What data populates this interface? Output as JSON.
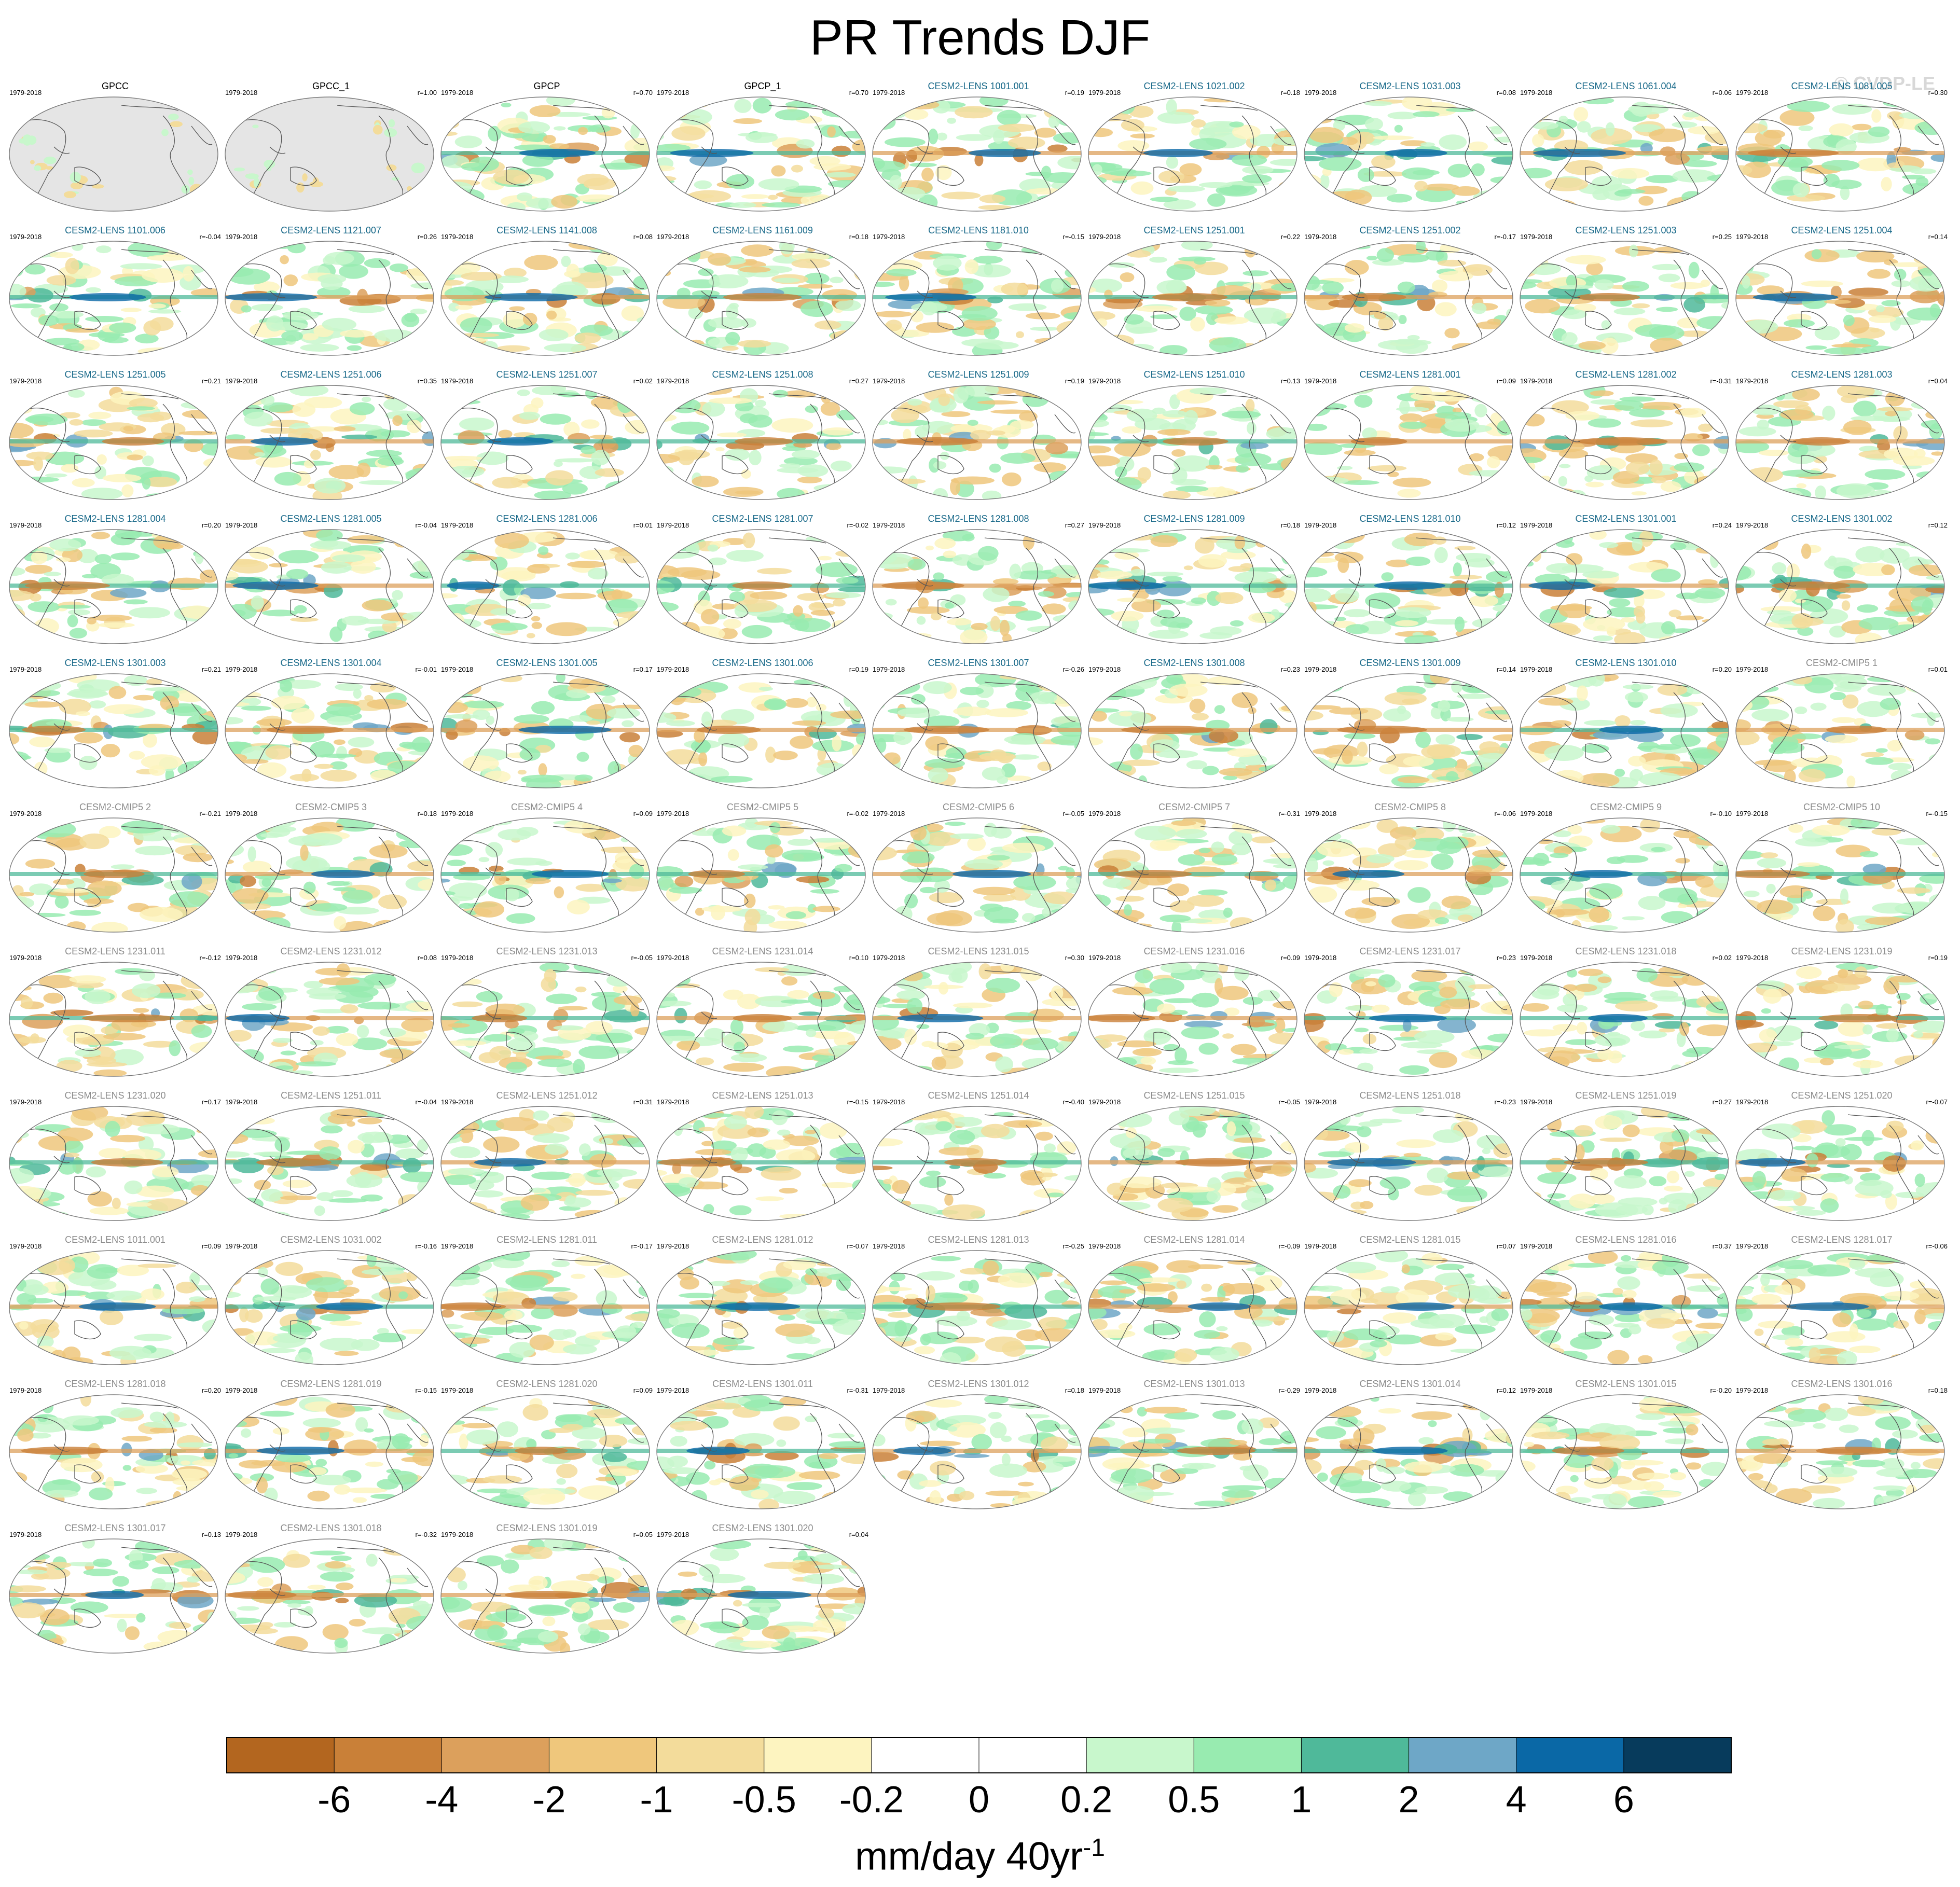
{
  "title": "PR Trends DJF",
  "watermark": "© CVDP-LE",
  "chart_data": {
    "type": "heatmap",
    "title": "PR Trends DJF",
    "projection": "Robinson (global, Pacific-centered)",
    "colorbar": {
      "label_text": "mm/day 40yr",
      "label_superscript": "-1",
      "ticks": [
        "-6",
        "-4",
        "-2",
        "-1",
        "-0.5",
        "-0.2",
        "0",
        "0.2",
        "0.5",
        "1",
        "2",
        "4",
        "6"
      ],
      "colors": [
        "#b3661f",
        "#c98038",
        "#dca05c",
        "#efc77c",
        "#f3dc9b",
        "#fdf4c0",
        "#ffffff",
        "#ffffff",
        "#c8f7cc",
        "#98ebb0",
        "#4fb99a",
        "#6ea7c7",
        "#0a68a6",
        "#073b5c"
      ]
    },
    "panels": [
      {
        "name": "GPCC",
        "period": "1979-2018",
        "r": "",
        "group": "obs",
        "masked_ocean": true
      },
      {
        "name": "GPCC_1",
        "period": "1979-2018",
        "r": "r=1.00",
        "group": "obs",
        "masked_ocean": true
      },
      {
        "name": "GPCP",
        "period": "1979-2018",
        "r": "r=0.70",
        "group": "obs"
      },
      {
        "name": "GPCP_1",
        "period": "1979-2018",
        "r": "r=0.70",
        "group": "obs"
      },
      {
        "name": "CESM2-LENS 1001.001",
        "period": "1979-2018",
        "r": "r=0.19",
        "group": "lens"
      },
      {
        "name": "CESM2-LENS 1021.002",
        "period": "1979-2018",
        "r": "r=0.18",
        "group": "lens"
      },
      {
        "name": "CESM2-LENS 1031.003",
        "period": "1979-2018",
        "r": "r=0.08",
        "group": "lens"
      },
      {
        "name": "CESM2-LENS 1061.004",
        "period": "1979-2018",
        "r": "r=0.06",
        "group": "lens"
      },
      {
        "name": "CESM2-LENS 1081.005",
        "period": "1979-2018",
        "r": "r=0.30",
        "group": "lens"
      },
      {
        "name": "CESM2-LENS 1101.006",
        "period": "1979-2018",
        "r": "r=-0.04",
        "group": "lens"
      },
      {
        "name": "CESM2-LENS 1121.007",
        "period": "1979-2018",
        "r": "r=0.26",
        "group": "lens"
      },
      {
        "name": "CESM2-LENS 1141.008",
        "period": "1979-2018",
        "r": "r=0.08",
        "group": "lens"
      },
      {
        "name": "CESM2-LENS 1161.009",
        "period": "1979-2018",
        "r": "r=0.18",
        "group": "lens"
      },
      {
        "name": "CESM2-LENS 1181.010",
        "period": "1979-2018",
        "r": "r=-0.15",
        "group": "lens"
      },
      {
        "name": "CESM2-LENS 1251.001",
        "period": "1979-2018",
        "r": "r=0.22",
        "group": "lens"
      },
      {
        "name": "CESM2-LENS 1251.002",
        "period": "1979-2018",
        "r": "r=-0.17",
        "group": "lens"
      },
      {
        "name": "CESM2-LENS 1251.003",
        "period": "1979-2018",
        "r": "r=0.25",
        "group": "lens"
      },
      {
        "name": "CESM2-LENS 1251.004",
        "period": "1979-2018",
        "r": "r=0.14",
        "group": "lens"
      },
      {
        "name": "CESM2-LENS 1251.005",
        "period": "1979-2018",
        "r": "r=0.21",
        "group": "lens"
      },
      {
        "name": "CESM2-LENS 1251.006",
        "period": "1979-2018",
        "r": "r=0.35",
        "group": "lens"
      },
      {
        "name": "CESM2-LENS 1251.007",
        "period": "1979-2018",
        "r": "r=0.02",
        "group": "lens"
      },
      {
        "name": "CESM2-LENS 1251.008",
        "period": "1979-2018",
        "r": "r=0.27",
        "group": "lens"
      },
      {
        "name": "CESM2-LENS 1251.009",
        "period": "1979-2018",
        "r": "r=0.19",
        "group": "lens"
      },
      {
        "name": "CESM2-LENS 1251.010",
        "period": "1979-2018",
        "r": "r=0.13",
        "group": "lens"
      },
      {
        "name": "CESM2-LENS 1281.001",
        "period": "1979-2018",
        "r": "r=0.09",
        "group": "lens"
      },
      {
        "name": "CESM2-LENS 1281.002",
        "period": "1979-2018",
        "r": "r=-0.31",
        "group": "lens"
      },
      {
        "name": "CESM2-LENS 1281.003",
        "period": "1979-2018",
        "r": "r=0.04",
        "group": "lens"
      },
      {
        "name": "CESM2-LENS 1281.004",
        "period": "1979-2018",
        "r": "r=0.20",
        "group": "lens"
      },
      {
        "name": "CESM2-LENS 1281.005",
        "period": "1979-2018",
        "r": "r=-0.04",
        "group": "lens"
      },
      {
        "name": "CESM2-LENS 1281.006",
        "period": "1979-2018",
        "r": "r=0.01",
        "group": "lens"
      },
      {
        "name": "CESM2-LENS 1281.007",
        "period": "1979-2018",
        "r": "r=-0.02",
        "group": "lens"
      },
      {
        "name": "CESM2-LENS 1281.008",
        "period": "1979-2018",
        "r": "r=0.27",
        "group": "lens"
      },
      {
        "name": "CESM2-LENS 1281.009",
        "period": "1979-2018",
        "r": "r=0.18",
        "group": "lens"
      },
      {
        "name": "CESM2-LENS 1281.010",
        "period": "1979-2018",
        "r": "r=0.12",
        "group": "lens"
      },
      {
        "name": "CESM2-LENS 1301.001",
        "period": "1979-2018",
        "r": "r=0.24",
        "group": "lens"
      },
      {
        "name": "CESM2-LENS 1301.002",
        "period": "1979-2018",
        "r": "r=0.12",
        "group": "lens"
      },
      {
        "name": "CESM2-LENS 1301.003",
        "period": "1979-2018",
        "r": "r=0.21",
        "group": "lens"
      },
      {
        "name": "CESM2-LENS 1301.004",
        "period": "1979-2018",
        "r": "r=-0.01",
        "group": "lens"
      },
      {
        "name": "CESM2-LENS 1301.005",
        "period": "1979-2018",
        "r": "r=0.17",
        "group": "lens"
      },
      {
        "name": "CESM2-LENS 1301.006",
        "period": "1979-2018",
        "r": "r=0.19",
        "group": "lens"
      },
      {
        "name": "CESM2-LENS 1301.007",
        "period": "1979-2018",
        "r": "r=-0.26",
        "group": "lens"
      },
      {
        "name": "CESM2-LENS 1301.008",
        "period": "1979-2018",
        "r": "r=0.23",
        "group": "lens"
      },
      {
        "name": "CESM2-LENS 1301.009",
        "period": "1979-2018",
        "r": "r=0.14",
        "group": "lens"
      },
      {
        "name": "CESM2-LENS 1301.010",
        "period": "1979-2018",
        "r": "r=0.20",
        "group": "lens"
      },
      {
        "name": "CESM2-CMIP5 1",
        "period": "1979-2018",
        "r": "r=0.01",
        "group": "other"
      },
      {
        "name": "CESM2-CMIP5 2",
        "period": "1979-2018",
        "r": "r=-0.21",
        "group": "other"
      },
      {
        "name": "CESM2-CMIP5 3",
        "period": "1979-2018",
        "r": "r=0.18",
        "group": "other"
      },
      {
        "name": "CESM2-CMIP5 4",
        "period": "1979-2018",
        "r": "r=0.09",
        "group": "other"
      },
      {
        "name": "CESM2-CMIP5 5",
        "period": "1979-2018",
        "r": "r=-0.02",
        "group": "other"
      },
      {
        "name": "CESM2-CMIP5 6",
        "period": "1979-2018",
        "r": "r=-0.05",
        "group": "other"
      },
      {
        "name": "CESM2-CMIP5 7",
        "period": "1979-2018",
        "r": "r=-0.31",
        "group": "other"
      },
      {
        "name": "CESM2-CMIP5 8",
        "period": "1979-2018",
        "r": "r=-0.06",
        "group": "other"
      },
      {
        "name": "CESM2-CMIP5 9",
        "period": "1979-2018",
        "r": "r=-0.10",
        "group": "other"
      },
      {
        "name": "CESM2-CMIP5 10",
        "period": "1979-2018",
        "r": "r=-0.15",
        "group": "other"
      },
      {
        "name": "CESM2-LENS 1231.011",
        "period": "1979-2018",
        "r": "r=-0.12",
        "group": "other"
      },
      {
        "name": "CESM2-LENS 1231.012",
        "period": "1979-2018",
        "r": "r=0.08",
        "group": "other"
      },
      {
        "name": "CESM2-LENS 1231.013",
        "period": "1979-2018",
        "r": "r=-0.05",
        "group": "other"
      },
      {
        "name": "CESM2-LENS 1231.014",
        "period": "1979-2018",
        "r": "r=0.10",
        "group": "other"
      },
      {
        "name": "CESM2-LENS 1231.015",
        "period": "1979-2018",
        "r": "r=0.30",
        "group": "other"
      },
      {
        "name": "CESM2-LENS 1231.016",
        "period": "1979-2018",
        "r": "r=0.09",
        "group": "other"
      },
      {
        "name": "CESM2-LENS 1231.017",
        "period": "1979-2018",
        "r": "r=0.23",
        "group": "other"
      },
      {
        "name": "CESM2-LENS 1231.018",
        "period": "1979-2018",
        "r": "r=0.02",
        "group": "other"
      },
      {
        "name": "CESM2-LENS 1231.019",
        "period": "1979-2018",
        "r": "r=0.19",
        "group": "other"
      },
      {
        "name": "CESM2-LENS 1231.020",
        "period": "1979-2018",
        "r": "r=0.17",
        "group": "other"
      },
      {
        "name": "CESM2-LENS 1251.011",
        "period": "1979-2018",
        "r": "r=-0.04",
        "group": "other"
      },
      {
        "name": "CESM2-LENS 1251.012",
        "period": "1979-2018",
        "r": "r=0.31",
        "group": "other"
      },
      {
        "name": "CESM2-LENS 1251.013",
        "period": "1979-2018",
        "r": "r=-0.15",
        "group": "other"
      },
      {
        "name": "CESM2-LENS 1251.014",
        "period": "1979-2018",
        "r": "r=-0.40",
        "group": "other"
      },
      {
        "name": "CESM2-LENS 1251.015",
        "period": "1979-2018",
        "r": "r=-0.05",
        "group": "other"
      },
      {
        "name": "CESM2-LENS 1251.018",
        "period": "1979-2018",
        "r": "r=-0.23",
        "group": "other"
      },
      {
        "name": "CESM2-LENS 1251.019",
        "period": "1979-2018",
        "r": "r=0.27",
        "group": "other"
      },
      {
        "name": "CESM2-LENS 1251.020",
        "period": "1979-2018",
        "r": "r=-0.07",
        "group": "other"
      },
      {
        "name": "CESM2-LENS 1011.001",
        "period": "1979-2018",
        "r": "r=0.09",
        "group": "other"
      },
      {
        "name": "CESM2-LENS 1031.002",
        "period": "1979-2018",
        "r": "r=-0.16",
        "group": "other"
      },
      {
        "name": "CESM2-LENS 1281.011",
        "period": "1979-2018",
        "r": "r=-0.17",
        "group": "other"
      },
      {
        "name": "CESM2-LENS 1281.012",
        "period": "1979-2018",
        "r": "r=-0.07",
        "group": "other"
      },
      {
        "name": "CESM2-LENS 1281.013",
        "period": "1979-2018",
        "r": "r=-0.25",
        "group": "other"
      },
      {
        "name": "CESM2-LENS 1281.014",
        "period": "1979-2018",
        "r": "r=-0.09",
        "group": "other"
      },
      {
        "name": "CESM2-LENS 1281.015",
        "period": "1979-2018",
        "r": "r=0.07",
        "group": "other"
      },
      {
        "name": "CESM2-LENS 1281.016",
        "period": "1979-2018",
        "r": "r=0.37",
        "group": "other"
      },
      {
        "name": "CESM2-LENS 1281.017",
        "period": "1979-2018",
        "r": "r=-0.06",
        "group": "other"
      },
      {
        "name": "CESM2-LENS 1281.018",
        "period": "1979-2018",
        "r": "r=0.20",
        "group": "other"
      },
      {
        "name": "CESM2-LENS 1281.019",
        "period": "1979-2018",
        "r": "r=-0.15",
        "group": "other"
      },
      {
        "name": "CESM2-LENS 1281.020",
        "period": "1979-2018",
        "r": "r=0.09",
        "group": "other"
      },
      {
        "name": "CESM2-LENS 1301.011",
        "period": "1979-2018",
        "r": "r=-0.31",
        "group": "other"
      },
      {
        "name": "CESM2-LENS 1301.012",
        "period": "1979-2018",
        "r": "r=0.18",
        "group": "other"
      },
      {
        "name": "CESM2-LENS 1301.013",
        "period": "1979-2018",
        "r": "r=-0.29",
        "group": "other"
      },
      {
        "name": "CESM2-LENS 1301.014",
        "period": "1979-2018",
        "r": "r=0.12",
        "group": "other"
      },
      {
        "name": "CESM2-LENS 1301.015",
        "period": "1979-2018",
        "r": "r=-0.20",
        "group": "other"
      },
      {
        "name": "CESM2-LENS 1301.016",
        "period": "1979-2018",
        "r": "r=0.18",
        "group": "other"
      },
      {
        "name": "CESM2-LENS 1301.017",
        "period": "1979-2018",
        "r": "r=0.13",
        "group": "other"
      },
      {
        "name": "CESM2-LENS 1301.018",
        "period": "1979-2018",
        "r": "r=-0.32",
        "group": "other"
      },
      {
        "name": "CESM2-LENS 1301.019",
        "period": "1979-2018",
        "r": "r=0.05",
        "group": "other"
      },
      {
        "name": "CESM2-LENS 1301.020",
        "period": "1979-2018",
        "r": "r=0.04",
        "group": "other"
      }
    ]
  },
  "styles": {
    "title_colors": {
      "obs": "#000000",
      "lens": "#1a6a8a",
      "other": "#8c8c8c"
    },
    "ocean_mask": "#e5e5e5",
    "coast": "#555555"
  }
}
